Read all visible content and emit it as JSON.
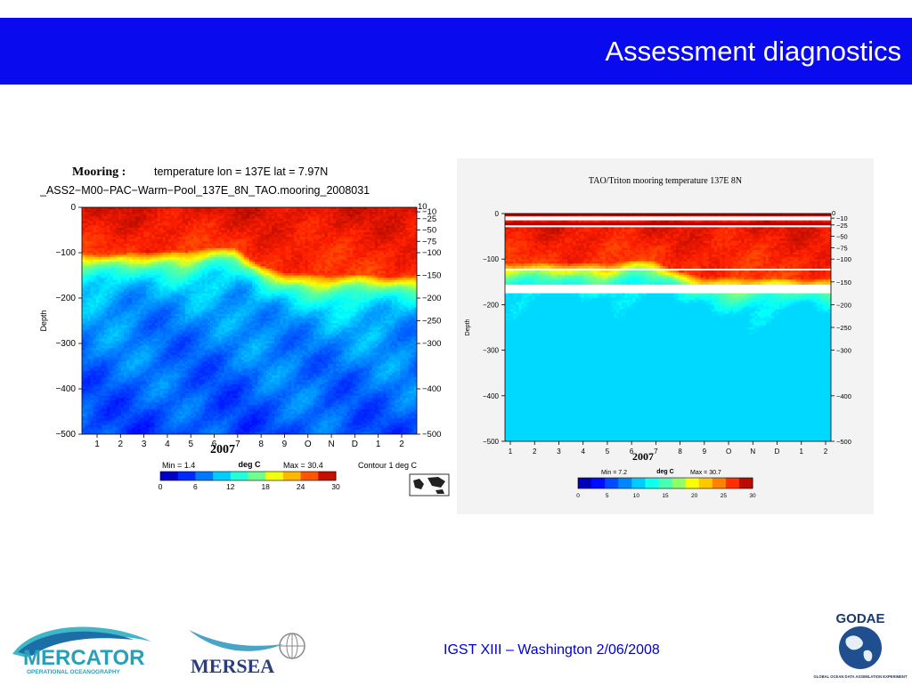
{
  "slide": {
    "title": "Assessment diagnostics",
    "footer": "IGST XIII – Washington  2/06/2008",
    "colors": {
      "header_bg": "#0a0aee",
      "footer_text": "#0000cc"
    }
  },
  "logos": {
    "mercator": {
      "name": "MERCATOR",
      "tagline": "OPERATIONAL OCEANOGRAPHY"
    },
    "mersea": {
      "name": "MERSEA"
    },
    "godae": {
      "name": "GODAE",
      "tagline": "GLOBAL OCEAN DATA ASSIMILATION EXPERIMENT"
    }
  },
  "chart_data": [
    {
      "type": "heatmap",
      "title": "Mooring :",
      "subtitle": "temperature   lon =  137E   lat =   7.97N",
      "subtitle2": "_ASS2−M00−PAC−Warm−Pool_137E_8N_TAO.mooring_2008031",
      "ylabel": "Depth",
      "xlabel": "2007",
      "ylim": [
        -500,
        0
      ],
      "y_ticks": [
        0,
        -100,
        -200,
        -300,
        -400,
        -500
      ],
      "y_tick_labels": [
        "0",
        "−100",
        "−200",
        "−300",
        "−400",
        "−500"
      ],
      "right_ticks": [
        -10,
        -25,
        -50,
        -75,
        -100,
        -150,
        -200,
        -250,
        -300,
        -400,
        -500
      ],
      "right_tick_labels": [
        "−10",
        "−25",
        "−50",
        "−75",
        "−100",
        "−150",
        "−200",
        "−250",
        "−300",
        "−400",
        "−500"
      ],
      "right_top_label": "10",
      "x_tick_labels": [
        "1",
        "2",
        "3",
        "4",
        "5",
        "6",
        "7",
        "8",
        "9",
        "O",
        "N",
        "D",
        "1",
        "2"
      ],
      "thermocline_depth": [
        -100,
        -104,
        -98,
        -92,
        -96,
        -86,
        -90,
        -128,
        -140,
        -146,
        -148,
        -148,
        -152,
        -148
      ],
      "colorbar": {
        "label": "deg C",
        "min_label": "Min =   1.4",
        "max_label": "Max = 30.4",
        "contour_label": "Contour      1 deg C",
        "ticks": [
          0,
          6,
          12,
          18,
          24,
          30
        ],
        "range": [
          0,
          30
        ]
      }
    },
    {
      "type": "heatmap",
      "title": "TAO/Triton mooring temperature 137E 8N",
      "ylabel": "Depth",
      "xlabel": "2007",
      "ylim": [
        -500,
        0
      ],
      "y_ticks": [
        0,
        -100,
        -200,
        -300,
        -400,
        -500
      ],
      "y_tick_labels": [
        "0",
        "−100",
        "−200",
        "−300",
        "−400",
        "−500"
      ],
      "right_ticks": [
        -10,
        -25,
        -50,
        -75,
        -100,
        -150,
        -200,
        -250,
        -300,
        -400,
        -500
      ],
      "right_tick_labels": [
        "−10",
        "−25",
        "−50",
        "−75",
        "−100",
        "−150",
        "−200",
        "−250",
        "−300",
        "−400",
        "−500"
      ],
      "right_top_label": "0",
      "x_tick_labels": [
        "1",
        "2",
        "3",
        "4",
        "5",
        "6",
        "7",
        "8",
        "9",
        "O",
        "N",
        "D",
        "1",
        "2"
      ],
      "colorbar": {
        "label": "deg C",
        "min_label": "Min =    7.2",
        "max_label": "Max = 30.7",
        "ticks": [
          0,
          5,
          10,
          15,
          20,
          25,
          30
        ],
        "range": [
          0,
          30
        ]
      }
    }
  ]
}
